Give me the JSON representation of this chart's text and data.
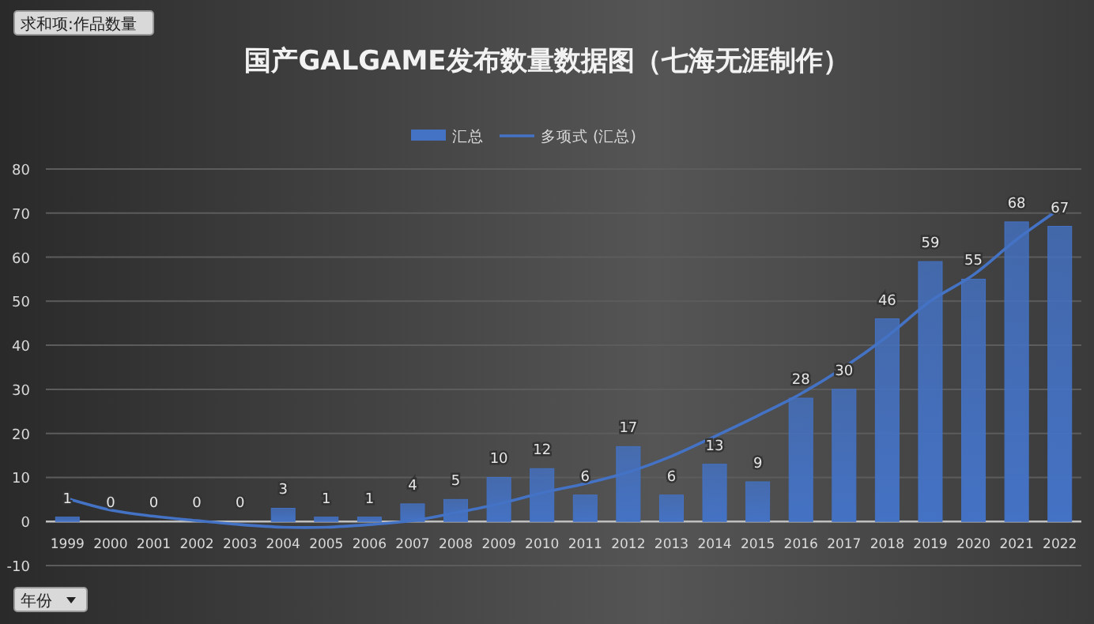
{
  "chart_data": {
    "type": "bar",
    "title": "国产GALGAME发布数量数据图（七海无涯制作）",
    "categories": [
      "1999",
      "2000",
      "2001",
      "2002",
      "2003",
      "2004",
      "2005",
      "2006",
      "2007",
      "2008",
      "2009",
      "2010",
      "2011",
      "2012",
      "2013",
      "2014",
      "2015",
      "2016",
      "2017",
      "2018",
      "2019",
      "2020",
      "2021",
      "2022"
    ],
    "series": [
      {
        "name": "汇总",
        "color": "#4472c4",
        "data_labels": true,
        "values": [
          1,
          0,
          0,
          0,
          0,
          3,
          1,
          1,
          4,
          5,
          10,
          12,
          6,
          17,
          6,
          13,
          9,
          28,
          30,
          46,
          59,
          55,
          68,
          67
        ]
      },
      {
        "name": "多项式 (汇总)",
        "type": "line",
        "color": "#4472c4",
        "values": [
          5.2,
          2.6,
          1.2,
          0.2,
          -0.7,
          -1.3,
          -1.3,
          -0.7,
          0.2,
          2,
          4,
          6.5,
          8.6,
          11.2,
          14.8,
          19.3,
          24,
          29,
          35,
          42,
          50,
          56,
          64,
          71
        ]
      }
    ],
    "ylim": [
      -10,
      80
    ],
    "yticks": [
      -10,
      0,
      10,
      20,
      30,
      40,
      50,
      60,
      70,
      80
    ],
    "grid": "y",
    "legend": "top",
    "annotations": [
      "求和项:作品数量",
      "年份"
    ]
  }
}
